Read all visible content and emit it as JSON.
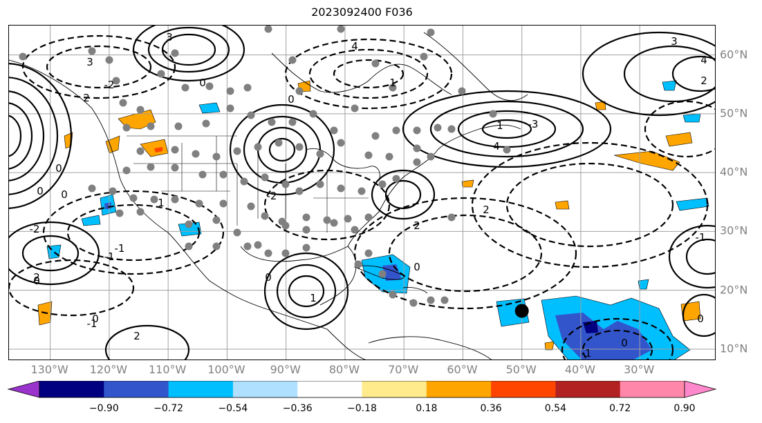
{
  "title": "2023092400 F036",
  "map": {
    "lon_labels": [
      "130°W",
      "120°W",
      "110°W",
      "100°W",
      "90°W",
      "80°W",
      "70°W",
      "60°W",
      "50°W",
      "40°W",
      "30°W"
    ],
    "lat_labels": [
      "60°N",
      "50°N",
      "40°N",
      "30°N",
      "20°N",
      "10°N"
    ],
    "extent": {
      "lon_min": -137,
      "lon_max": -17,
      "lat_min": 8,
      "lat_max": 65
    },
    "gridlines": true,
    "contour_labels": [
      "3",
      "4",
      "4",
      "2",
      "3",
      "0",
      "0",
      "2",
      "3",
      "1",
      "4",
      "0",
      "-3",
      "0",
      "-2",
      "1",
      "-1",
      "2",
      "0",
      "-1",
      "0",
      "-2",
      "0",
      "2",
      "1",
      "1",
      "-2",
      "2",
      "0",
      "-1",
      "-1",
      "0",
      "2",
      "-1",
      "0",
      "0",
      "0"
    ],
    "storm_marker": {
      "lon": -50,
      "lat": 16.5
    }
  },
  "colors": {
    "contour": "#000000",
    "gridline": "#a0a0a0",
    "station_dot": "#808080",
    "label_gray": "#808080"
  },
  "colorbar": {
    "ticks": [
      "−0.90",
      "−0.72",
      "−0.54",
      "−0.36",
      "−0.18",
      "0.18",
      "0.36",
      "0.54",
      "0.72",
      "0.90"
    ],
    "colors": [
      "#9933cc",
      "#000080",
      "#3355cc",
      "#00bfff",
      "#b0e0ff",
      "#ffffff",
      "#ffeb8c",
      "#ffa500",
      "#ff4500",
      "#b22222",
      "#ff88aa",
      "#ff88cc"
    ],
    "extend": "both"
  }
}
